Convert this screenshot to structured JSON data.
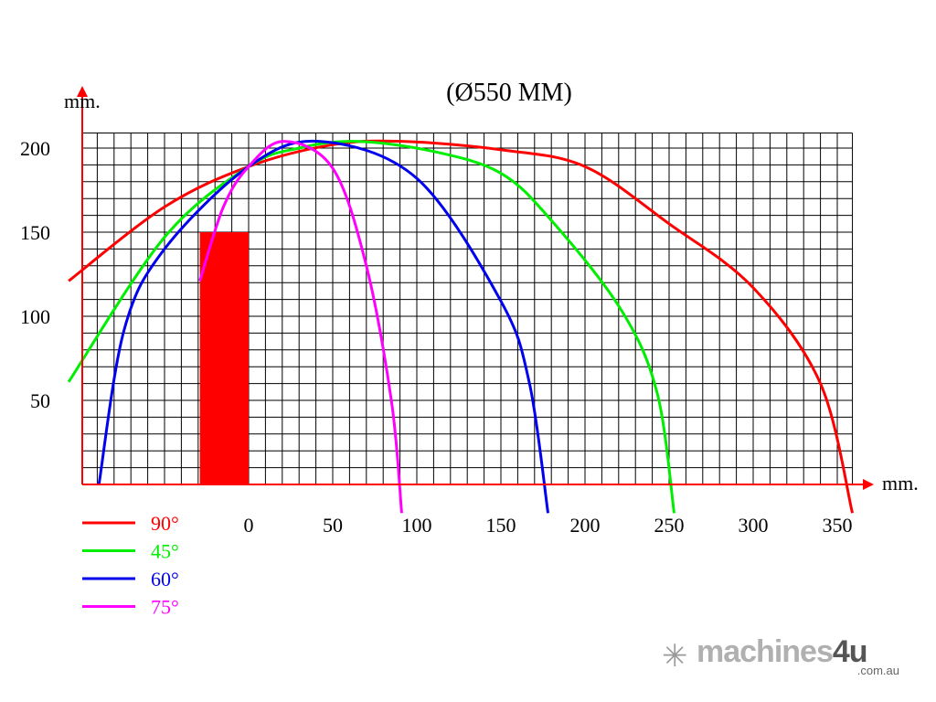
{
  "chart_data": {
    "type": "line",
    "title": "(Ø550 MM)",
    "xlabel": "mm.",
    "ylabel": "mm.",
    "xlim": [
      -99,
      359
    ],
    "ylim": [
      0,
      209
    ],
    "grid": true,
    "grid_step": 10,
    "x_ticks": [
      0,
      50,
      100,
      150,
      200,
      250,
      300,
      350
    ],
    "y_ticks": [
      50,
      100,
      150,
      200
    ],
    "legend_position": "bottom-left",
    "series": [
      {
        "name": "90°",
        "color": "#ff0000",
        "points": [
          [
            -107,
            121
          ],
          [
            -50,
            165
          ],
          [
            0,
            189
          ],
          [
            50,
            202
          ],
          [
            91,
            204
          ],
          [
            150,
            199
          ],
          [
            200,
            189
          ],
          [
            250,
            155
          ],
          [
            300,
            117
          ],
          [
            340,
            60
          ],
          [
            359,
            -17
          ]
        ]
      },
      {
        "name": "45°",
        "color": "#00ee00",
        "points": [
          [
            -107,
            61
          ],
          [
            -50,
            147
          ],
          [
            0,
            189
          ],
          [
            30,
            200
          ],
          [
            64,
            204
          ],
          [
            110,
            198
          ],
          [
            150,
            185
          ],
          [
            180,
            157
          ],
          [
            222,
            103
          ],
          [
            243,
            54
          ],
          [
            253,
            -17
          ]
        ]
      },
      {
        "name": "60°",
        "color": "#0000ee",
        "points": [
          [
            -89,
            0
          ],
          [
            -74,
            92
          ],
          [
            -50,
            140
          ],
          [
            0,
            189
          ],
          [
            42,
            204
          ],
          [
            100,
            182
          ],
          [
            150,
            109
          ],
          [
            167,
            60
          ],
          [
            178,
            -17
          ]
        ]
      },
      {
        "name": "75°",
        "color": "#ff00ff",
        "points": [
          [
            -29,
            121
          ],
          [
            -15,
            165
          ],
          [
            0,
            189
          ],
          [
            21,
            204
          ],
          [
            50,
            188
          ],
          [
            70,
            130
          ],
          [
            85,
            49
          ],
          [
            91,
            -17
          ]
        ]
      }
    ],
    "rectangle": {
      "x": [
        -29,
        0
      ],
      "y": [
        0,
        150
      ],
      "color": "#ff0000"
    }
  },
  "logo": {
    "text_light": "machines",
    "text_dark": "4u",
    "sub": ".com.au"
  }
}
